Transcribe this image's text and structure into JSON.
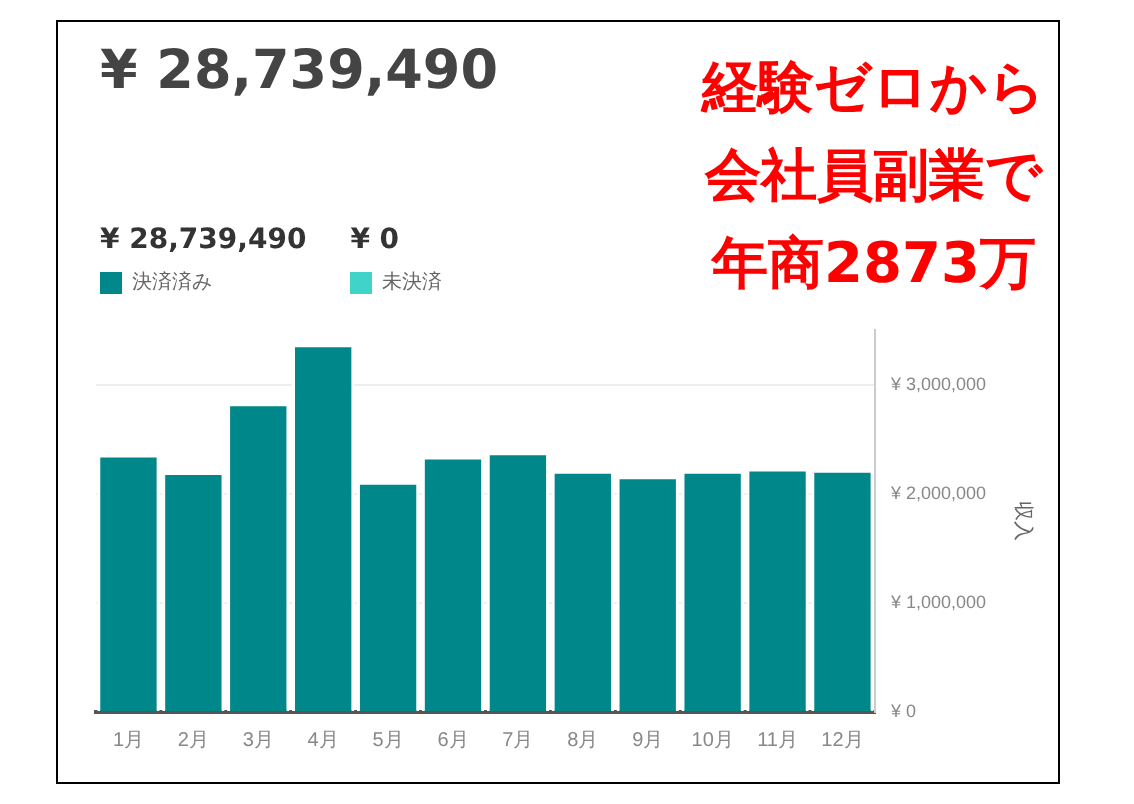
{
  "chart_data": {
    "type": "bar",
    "title": "¥ 28,739,490",
    "ylabel": "収入",
    "categories": [
      "1月",
      "2月",
      "3月",
      "4月",
      "5月",
      "6月",
      "7月",
      "8月",
      "9月",
      "10月",
      "11月",
      "12月"
    ],
    "series": [
      {
        "name": "決済済み",
        "color": "#00878a",
        "values": [
          2360000,
          2200000,
          2830000,
          3370000,
          2110000,
          2340000,
          2380000,
          2210000,
          2160000,
          2210000,
          2230000,
          2220000
        ]
      },
      {
        "name": "未決済",
        "color": "#3fd3c9",
        "values": [
          0,
          0,
          0,
          0,
          0,
          0,
          0,
          0,
          0,
          0,
          0,
          0
        ]
      }
    ],
    "stacked": true,
    "ylim": [
      0,
      3500000
    ],
    "yticks": [
      {
        "value": 0,
        "label": "¥ 0"
      },
      {
        "value": 1000000,
        "label": "¥ 1,000,000"
      },
      {
        "value": 2000000,
        "label": "¥ 2,000,000"
      },
      {
        "value": 3000000,
        "label": "¥ 3,000,000"
      }
    ],
    "grid": "y",
    "legend": "top left",
    "annotations": [
      "¥ 28,739,490",
      "¥ 0",
      "経験ゼロから",
      "会社員副業で",
      "年商2873万"
    ]
  }
}
